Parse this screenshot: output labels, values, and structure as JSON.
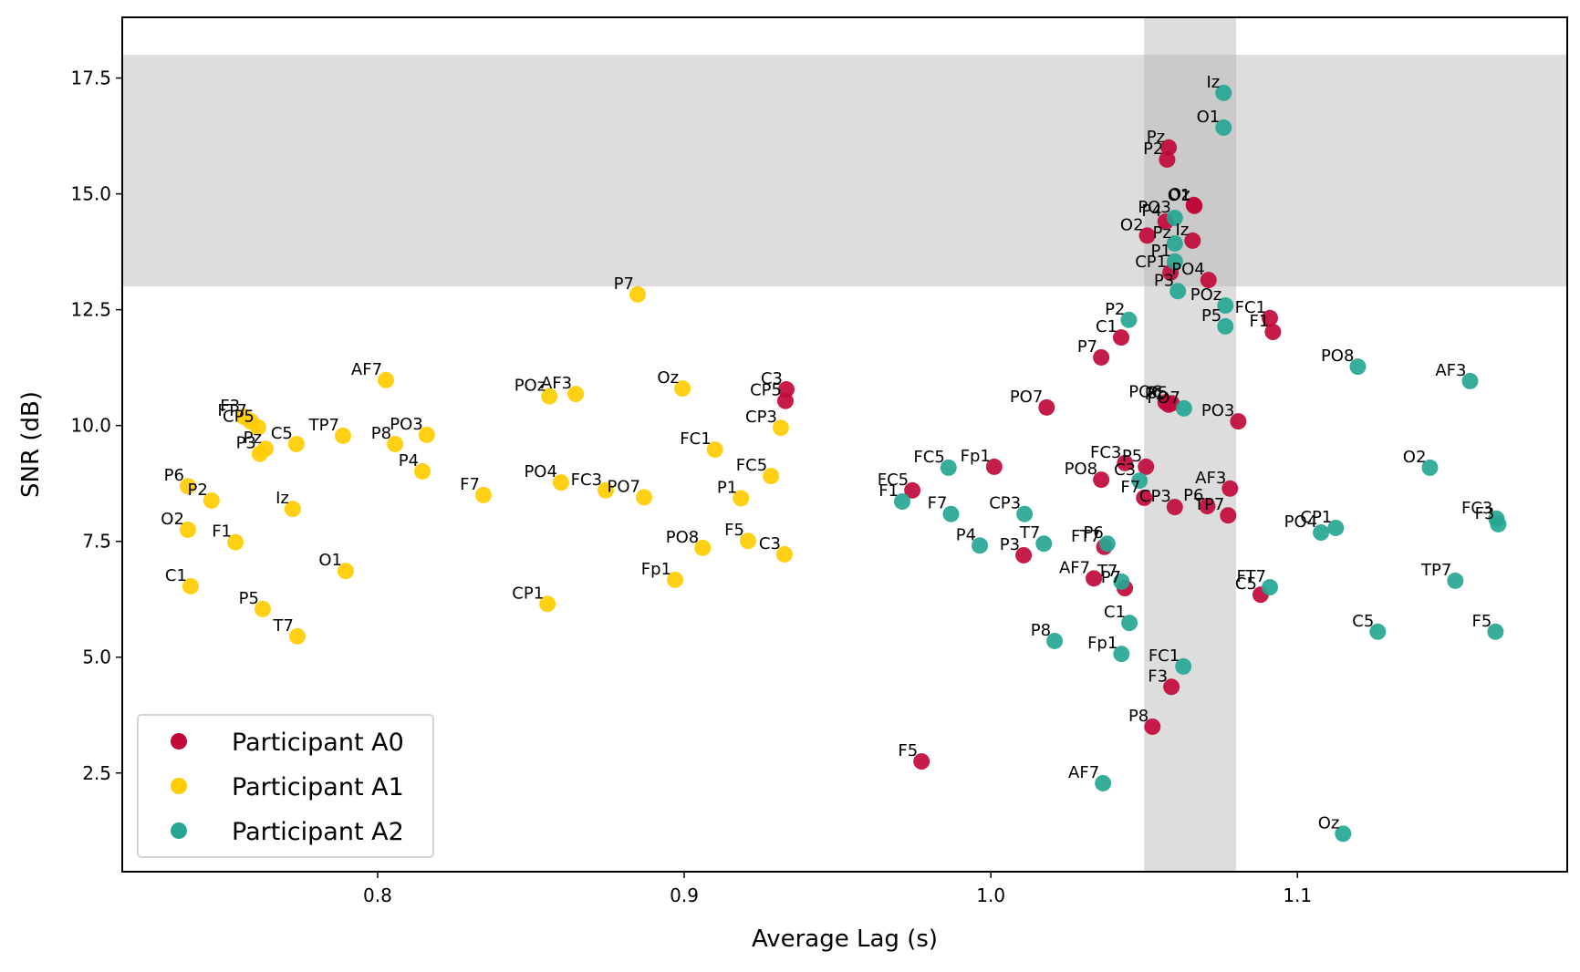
{
  "chart_data": {
    "type": "scatter",
    "title": "",
    "xlabel": "Average Lag (s)",
    "ylabel": "SNR (dB)",
    "xlim": [
      0.7167,
      1.188
    ],
    "ylim": [
      0.37,
      18.81
    ],
    "xticks": [
      0.8,
      0.9,
      1.0,
      1.1
    ],
    "xtick_labels": [
      "0.8",
      "0.9",
      "1.0",
      "1.1"
    ],
    "yticks": [
      2.5,
      5.0,
      7.5,
      10.0,
      12.5,
      15.0,
      17.5
    ],
    "ytick_labels": [
      "2.5",
      "5.0",
      "7.5",
      "10.0",
      "12.5",
      "15.0",
      "17.5"
    ],
    "grid": false,
    "legend_position": "lower-left",
    "highlight_bands": [
      {
        "orientation": "horizontal",
        "from": 13.0,
        "to": 18.0,
        "color": "#dddddd"
      },
      {
        "orientation": "vertical",
        "from": 1.05,
        "to": 1.08,
        "color": "#dddddd"
      }
    ],
    "series": [
      {
        "name": "Participant A0",
        "color": "#c0093a",
        "points": [
          {
            "label": "Pz",
            "x": 1.058,
            "y": 16.0
          },
          {
            "label": "P2",
            "x": 1.0575,
            "y": 15.74
          },
          {
            "label": "O1",
            "x": 1.0664,
            "y": 14.74
          },
          {
            "label": "Oz",
            "x": 1.0662,
            "y": 14.76
          },
          {
            "label": "P4",
            "x": 1.057,
            "y": 14.4
          },
          {
            "label": "O2",
            "x": 1.051,
            "y": 14.1
          },
          {
            "label": "Iz",
            "x": 1.0658,
            "y": 13.99
          },
          {
            "label": "CP1",
            "x": 1.0586,
            "y": 13.3
          },
          {
            "label": "PO4",
            "x": 1.071,
            "y": 13.14
          },
          {
            "label": "FC1",
            "x": 1.091,
            "y": 12.32
          },
          {
            "label": "F1",
            "x": 1.092,
            "y": 12.02
          },
          {
            "label": "C1",
            "x": 1.0425,
            "y": 11.9
          },
          {
            "label": "P7",
            "x": 1.036,
            "y": 11.47
          },
          {
            "label": "C3",
            "x": 0.9333,
            "y": 10.78
          },
          {
            "label": "CP5",
            "x": 0.933,
            "y": 10.53
          },
          {
            "label": "PO7",
            "x": 1.0182,
            "y": 10.39
          },
          {
            "label": "PO6",
            "x": 1.057,
            "y": 10.5
          },
          {
            "label": "P1",
            "x": 1.058,
            "y": 10.45
          },
          {
            "label": "P5",
            "x": 1.059,
            "y": 10.48
          },
          {
            "label": "PO3",
            "x": 1.0807,
            "y": 10.09
          },
          {
            "label": "Fp1",
            "x": 1.0011,
            "y": 9.11
          },
          {
            "label": "FC3",
            "x": 1.0438,
            "y": 9.19
          },
          {
            "label": "P5",
            "x": 1.0506,
            "y": 9.11
          },
          {
            "label": "PO8",
            "x": 1.036,
            "y": 8.83
          },
          {
            "label": "AF3",
            "x": 1.078,
            "y": 8.64
          },
          {
            "label": "FC5",
            "x": 0.9744,
            "y": 8.6
          },
          {
            "label": "F7",
            "x": 1.05,
            "y": 8.44
          },
          {
            "label": "CP3",
            "x": 1.06,
            "y": 8.24
          },
          {
            "label": "P6",
            "x": 1.0706,
            "y": 8.26
          },
          {
            "label": "TP7",
            "x": 1.0774,
            "y": 8.06
          },
          {
            "label": "FT7",
            "x": 1.037,
            "y": 7.38
          },
          {
            "label": "P3",
            "x": 1.0107,
            "y": 7.2
          },
          {
            "label": "AF7",
            "x": 1.0336,
            "y": 6.7
          },
          {
            "label": "P7",
            "x": 1.0437,
            "y": 6.49
          },
          {
            "label": "C5",
            "x": 1.088,
            "y": 6.35
          },
          {
            "label": "F3",
            "x": 1.0589,
            "y": 4.36
          },
          {
            "label": "P8",
            "x": 1.0527,
            "y": 3.5
          },
          {
            "label": "F5",
            "x": 0.9774,
            "y": 2.75
          }
        ]
      },
      {
        "name": "Participant A1",
        "color": "#ffcc00",
        "points": [
          {
            "label": "P7",
            "x": 0.8848,
            "y": 12.83
          },
          {
            "label": "AF7",
            "x": 0.8027,
            "y": 10.98
          },
          {
            "label": "POz",
            "x": 0.856,
            "y": 10.63
          },
          {
            "label": "AF3",
            "x": 0.8646,
            "y": 10.68
          },
          {
            "label": "Oz",
            "x": 0.8994,
            "y": 10.8
          },
          {
            "label": "F3",
            "x": 0.7563,
            "y": 10.19
          },
          {
            "label": "FT7",
            "x": 0.7586,
            "y": 10.09
          },
          {
            "label": "CP5",
            "x": 0.761,
            "y": 9.96
          },
          {
            "label": "CP3",
            "x": 0.9315,
            "y": 9.95
          },
          {
            "label": "PO3",
            "x": 0.816,
            "y": 9.8
          },
          {
            "label": "TP7",
            "x": 0.7887,
            "y": 9.78
          },
          {
            "label": "C5",
            "x": 0.7735,
            "y": 9.6
          },
          {
            "label": "P8",
            "x": 0.8057,
            "y": 9.6
          },
          {
            "label": "Pz",
            "x": 0.7634,
            "y": 9.5
          },
          {
            "label": "P3",
            "x": 0.7616,
            "y": 9.39
          },
          {
            "label": "FC1",
            "x": 0.91,
            "y": 9.48
          },
          {
            "label": "P4",
            "x": 0.8146,
            "y": 9.01
          },
          {
            "label": "FC5",
            "x": 0.9283,
            "y": 8.91
          },
          {
            "label": "PO4",
            "x": 0.8598,
            "y": 8.77
          },
          {
            "label": "P6",
            "x": 0.7381,
            "y": 8.69
          },
          {
            "label": "FC3",
            "x": 0.8744,
            "y": 8.6
          },
          {
            "label": "F7",
            "x": 0.8345,
            "y": 8.5
          },
          {
            "label": "PO7",
            "x": 0.8869,
            "y": 8.45
          },
          {
            "label": "P1",
            "x": 0.9185,
            "y": 8.43
          },
          {
            "label": "P2",
            "x": 0.7458,
            "y": 8.38
          },
          {
            "label": "Iz",
            "x": 0.7723,
            "y": 8.2
          },
          {
            "label": "O2",
            "x": 0.7381,
            "y": 7.75
          },
          {
            "label": "F5",
            "x": 0.9208,
            "y": 7.51
          },
          {
            "label": "F1",
            "x": 0.7536,
            "y": 7.48
          },
          {
            "label": "PO8",
            "x": 0.906,
            "y": 7.36
          },
          {
            "label": "C3",
            "x": 0.9327,
            "y": 7.22
          },
          {
            "label": "O1",
            "x": 0.7896,
            "y": 6.86
          },
          {
            "label": "Fp1",
            "x": 0.897,
            "y": 6.67
          },
          {
            "label": "C1",
            "x": 0.739,
            "y": 6.53
          },
          {
            "label": "CP1",
            "x": 0.8554,
            "y": 6.15
          },
          {
            "label": "P5",
            "x": 0.7625,
            "y": 6.04
          },
          {
            "label": "T7",
            "x": 0.7738,
            "y": 5.45
          }
        ]
      },
      {
        "name": "Participant A2",
        "color": "#26a692",
        "points": [
          {
            "label": "Iz",
            "x": 1.0759,
            "y": 17.18
          },
          {
            "label": "O1",
            "x": 1.0759,
            "y": 16.43
          },
          {
            "label": "PO3",
            "x": 1.06,
            "y": 14.48
          },
          {
            "label": "Pz",
            "x": 1.06,
            "y": 13.93
          },
          {
            "label": "P1",
            "x": 1.06,
            "y": 13.54
          },
          {
            "label": "P3",
            "x": 1.061,
            "y": 12.9
          },
          {
            "label": "POz",
            "x": 1.0765,
            "y": 12.59
          },
          {
            "label": "P2",
            "x": 1.045,
            "y": 12.28
          },
          {
            "label": "P5",
            "x": 1.0765,
            "y": 12.14
          },
          {
            "label": "PO8",
            "x": 1.1197,
            "y": 11.27
          },
          {
            "label": "AF3",
            "x": 1.1563,
            "y": 10.96
          },
          {
            "label": "PO7",
            "x": 1.063,
            "y": 10.37
          },
          {
            "label": "FC5",
            "x": 0.9862,
            "y": 9.09
          },
          {
            "label": "O2",
            "x": 1.1432,
            "y": 9.09
          },
          {
            "label": "C3",
            "x": 1.0485,
            "y": 8.81
          },
          {
            "label": "F1",
            "x": 0.9711,
            "y": 8.36
          },
          {
            "label": "F7",
            "x": 0.987,
            "y": 8.09
          },
          {
            "label": "CP3",
            "x": 1.011,
            "y": 8.09
          },
          {
            "label": "FC3",
            "x": 1.1649,
            "y": 7.99
          },
          {
            "label": "F3",
            "x": 1.1655,
            "y": 7.87
          },
          {
            "label": "CP1",
            "x": 1.1125,
            "y": 7.79
          },
          {
            "label": "PO4",
            "x": 1.1077,
            "y": 7.69
          },
          {
            "label": "T7",
            "x": 1.0173,
            "y": 7.45
          },
          {
            "label": "P6",
            "x": 1.038,
            "y": 7.45
          },
          {
            "label": "P4",
            "x": 0.9964,
            "y": 7.41
          },
          {
            "label": "TP7",
            "x": 1.1515,
            "y": 6.65
          },
          {
            "label": "T7",
            "x": 1.0426,
            "y": 6.63
          },
          {
            "label": "FT7",
            "x": 1.091,
            "y": 6.51
          },
          {
            "label": "C1",
            "x": 1.0452,
            "y": 5.74
          },
          {
            "label": "C5",
            "x": 1.1262,
            "y": 5.55
          },
          {
            "label": "F5",
            "x": 1.1646,
            "y": 5.55
          },
          {
            "label": "P8",
            "x": 1.0208,
            "y": 5.35
          },
          {
            "label": "Fp1",
            "x": 1.0426,
            "y": 5.07
          },
          {
            "label": "FC1",
            "x": 1.0628,
            "y": 4.8
          },
          {
            "label": "AF7",
            "x": 1.0366,
            "y": 2.28
          },
          {
            "label": "Oz",
            "x": 1.1149,
            "y": 1.19
          }
        ]
      }
    ]
  }
}
